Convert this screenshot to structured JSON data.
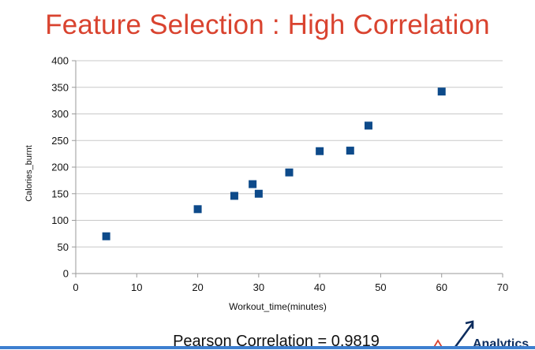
{
  "slide": {
    "title": "Feature Selection : High Correlation",
    "footer": "Pearson Correlation = 0.9819",
    "logo_text": "Analytics",
    "title_color": "#d9432f",
    "marker_color": "#0d4a8a",
    "bar_color": "#3d7fd0"
  },
  "chart_data": {
    "type": "scatter",
    "title": "",
    "xlabel": "Workout_time(minutes)",
    "ylabel": "Calories_burnt",
    "xlim": [
      0,
      70
    ],
    "ylim": [
      0,
      400
    ],
    "xticks": [
      0,
      10,
      20,
      30,
      40,
      50,
      60,
      70
    ],
    "yticks": [
      0,
      50,
      100,
      150,
      200,
      250,
      300,
      350,
      400
    ],
    "grid": true,
    "legend": "none",
    "series": [
      {
        "x": [
          5,
          20,
          26,
          29,
          30,
          35,
          40,
          45,
          48,
          60
        ],
        "y": [
          70,
          121,
          146,
          168,
          150,
          190,
          230,
          231,
          278,
          342
        ]
      }
    ]
  }
}
